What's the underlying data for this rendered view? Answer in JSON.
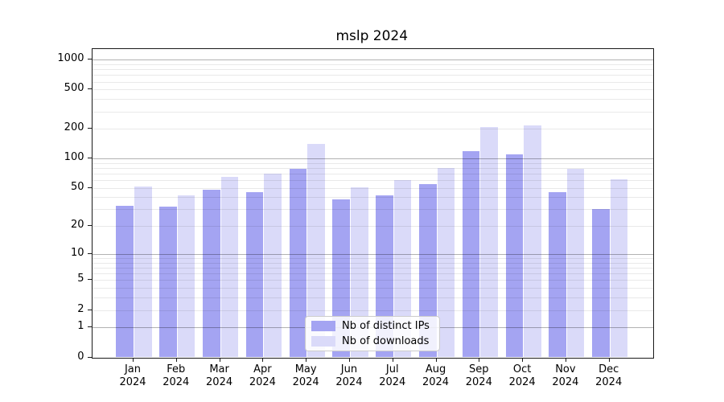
{
  "chart_data": {
    "type": "bar",
    "title": "mslp 2024",
    "categories": [
      "Jan 2024",
      "Feb 2024",
      "Mar 2024",
      "Apr 2024",
      "May 2024",
      "Jun 2024",
      "Jul 2024",
      "Aug 2024",
      "Sep 2024",
      "Oct 2024",
      "Nov 2024",
      "Dec 2024"
    ],
    "series": [
      {
        "name": "Nb of distinct IPs",
        "color": "#a4a4f2",
        "values": [
          33,
          32,
          48,
          45,
          78,
          38,
          42,
          55,
          118,
          110,
          45,
          30
        ]
      },
      {
        "name": "Nb of downloads",
        "color": "#dadaf9",
        "values": [
          52,
          42,
          65,
          70,
          140,
          51,
          60,
          80,
          210,
          218,
          78,
          61
        ]
      }
    ],
    "xlabel": "",
    "ylabel": "",
    "yscale": "log10(value+1)",
    "yticks": [
      0,
      1,
      2,
      5,
      10,
      20,
      50,
      100,
      200,
      500,
      1000
    ],
    "major_grid_values": [
      1,
      10,
      100,
      1000
    ],
    "ylim": [
      0,
      1300
    ],
    "grid": true,
    "legend_position": "lower center",
    "colors": {
      "major_grid": "#b3b3b3",
      "minor_grid": "#e8e8e8",
      "spine": "#1a1a1a",
      "background": "#ffffff"
    }
  }
}
